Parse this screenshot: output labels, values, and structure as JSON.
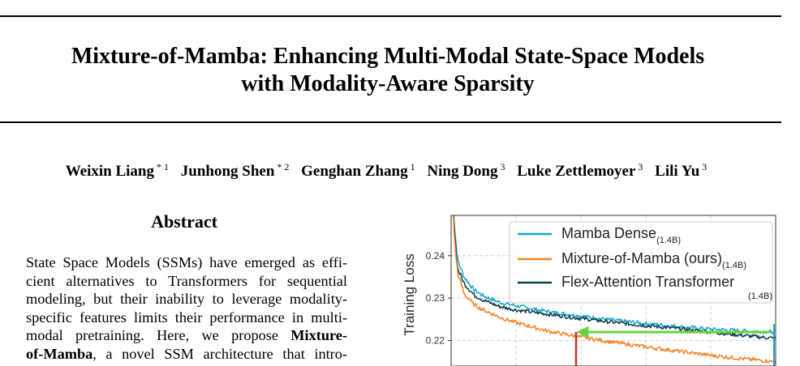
{
  "paper": {
    "title_lines": [
      "Mixture-of-Mamba: Enhancing Multi-Modal State-Space Models",
      "with Modality-Aware Sparsity"
    ],
    "authors": [
      {
        "name": "Weixin Liang",
        "affil": "* 1"
      },
      {
        "name": "Junhong Shen",
        "affil": "* 2"
      },
      {
        "name": "Genghan Zhang",
        "affil": "1"
      },
      {
        "name": "Ning Dong",
        "affil": "3"
      },
      {
        "name": "Luke Zettlemoyer",
        "affil": "3"
      },
      {
        "name": "Lili Yu",
        "affil": "3"
      }
    ],
    "abstract_heading": "Abstract",
    "abstract_lines": [
      "State Space Models (SSMs) have emerged as effi-",
      "cient alternatives to Transformers for sequential",
      "modeling, but their inability to leverage modality-",
      "specific features limits their performance in multi-",
      "modal pretraining.  Here, we propose ",
      "of-Mamba",
      ", a novel SSM architecture that intro-"
    ],
    "abstract_bold_1": "Mixture-",
    "abstract_bold_2": "of-Mamba"
  },
  "chart_data": {
    "type": "line",
    "ylabel": "Training Loss",
    "yticks": [
      "0.24",
      "0.23",
      "0.22"
    ],
    "ylim": [
      0.214,
      0.2495
    ],
    "xlim": [
      0,
      1
    ],
    "grid": true,
    "legend_position": "top-right",
    "series": [
      {
        "name": "Mamba Dense",
        "name_sub": "(1.4B)",
        "color": "#17a8c9",
        "x": [
          0.0,
          0.01,
          0.02,
          0.04,
          0.07,
          0.1,
          0.15,
          0.2,
          0.3,
          0.4,
          0.5,
          0.6,
          0.7,
          0.8,
          0.9,
          1.0
        ],
        "y": [
          0.262,
          0.247,
          0.239,
          0.235,
          0.232,
          0.2305,
          0.229,
          0.2282,
          0.2268,
          0.2258,
          0.2248,
          0.224,
          0.2233,
          0.2227,
          0.2223,
          0.222
        ]
      },
      {
        "name": "Mixture-of-Mamba (ours)",
        "name_sub": "(1.4B)",
        "color": "#f58220",
        "x": [
          0.0,
          0.01,
          0.02,
          0.04,
          0.07,
          0.1,
          0.15,
          0.2,
          0.3,
          0.4,
          0.5,
          0.6,
          0.7,
          0.8,
          0.9,
          1.0
        ],
        "y": [
          0.262,
          0.244,
          0.236,
          0.231,
          0.2285,
          0.2272,
          0.2255,
          0.2242,
          0.2222,
          0.2208,
          0.2196,
          0.2185,
          0.2175,
          0.2165,
          0.2157,
          0.215
        ]
      },
      {
        "name": "Flex-Attention Transformer",
        "name_sub": "(1.4B)",
        "color": "#0f3a4f",
        "x": [
          0.0,
          0.01,
          0.02,
          0.04,
          0.07,
          0.1,
          0.15,
          0.2,
          0.3,
          0.4,
          0.5,
          0.6,
          0.7,
          0.8,
          0.9,
          1.0
        ],
        "y": [
          0.262,
          0.246,
          0.237,
          0.2335,
          0.2308,
          0.2295,
          0.228,
          0.2272,
          0.2262,
          0.2252,
          0.2243,
          0.2235,
          0.2228,
          0.222,
          0.2212,
          0.2205
        ]
      }
    ],
    "annotation": {
      "arrow_color": "#6ad341",
      "marker_color": "#c0392b",
      "y": 0.222,
      "x_from": 0.385,
      "x_to": 1.0
    }
  }
}
